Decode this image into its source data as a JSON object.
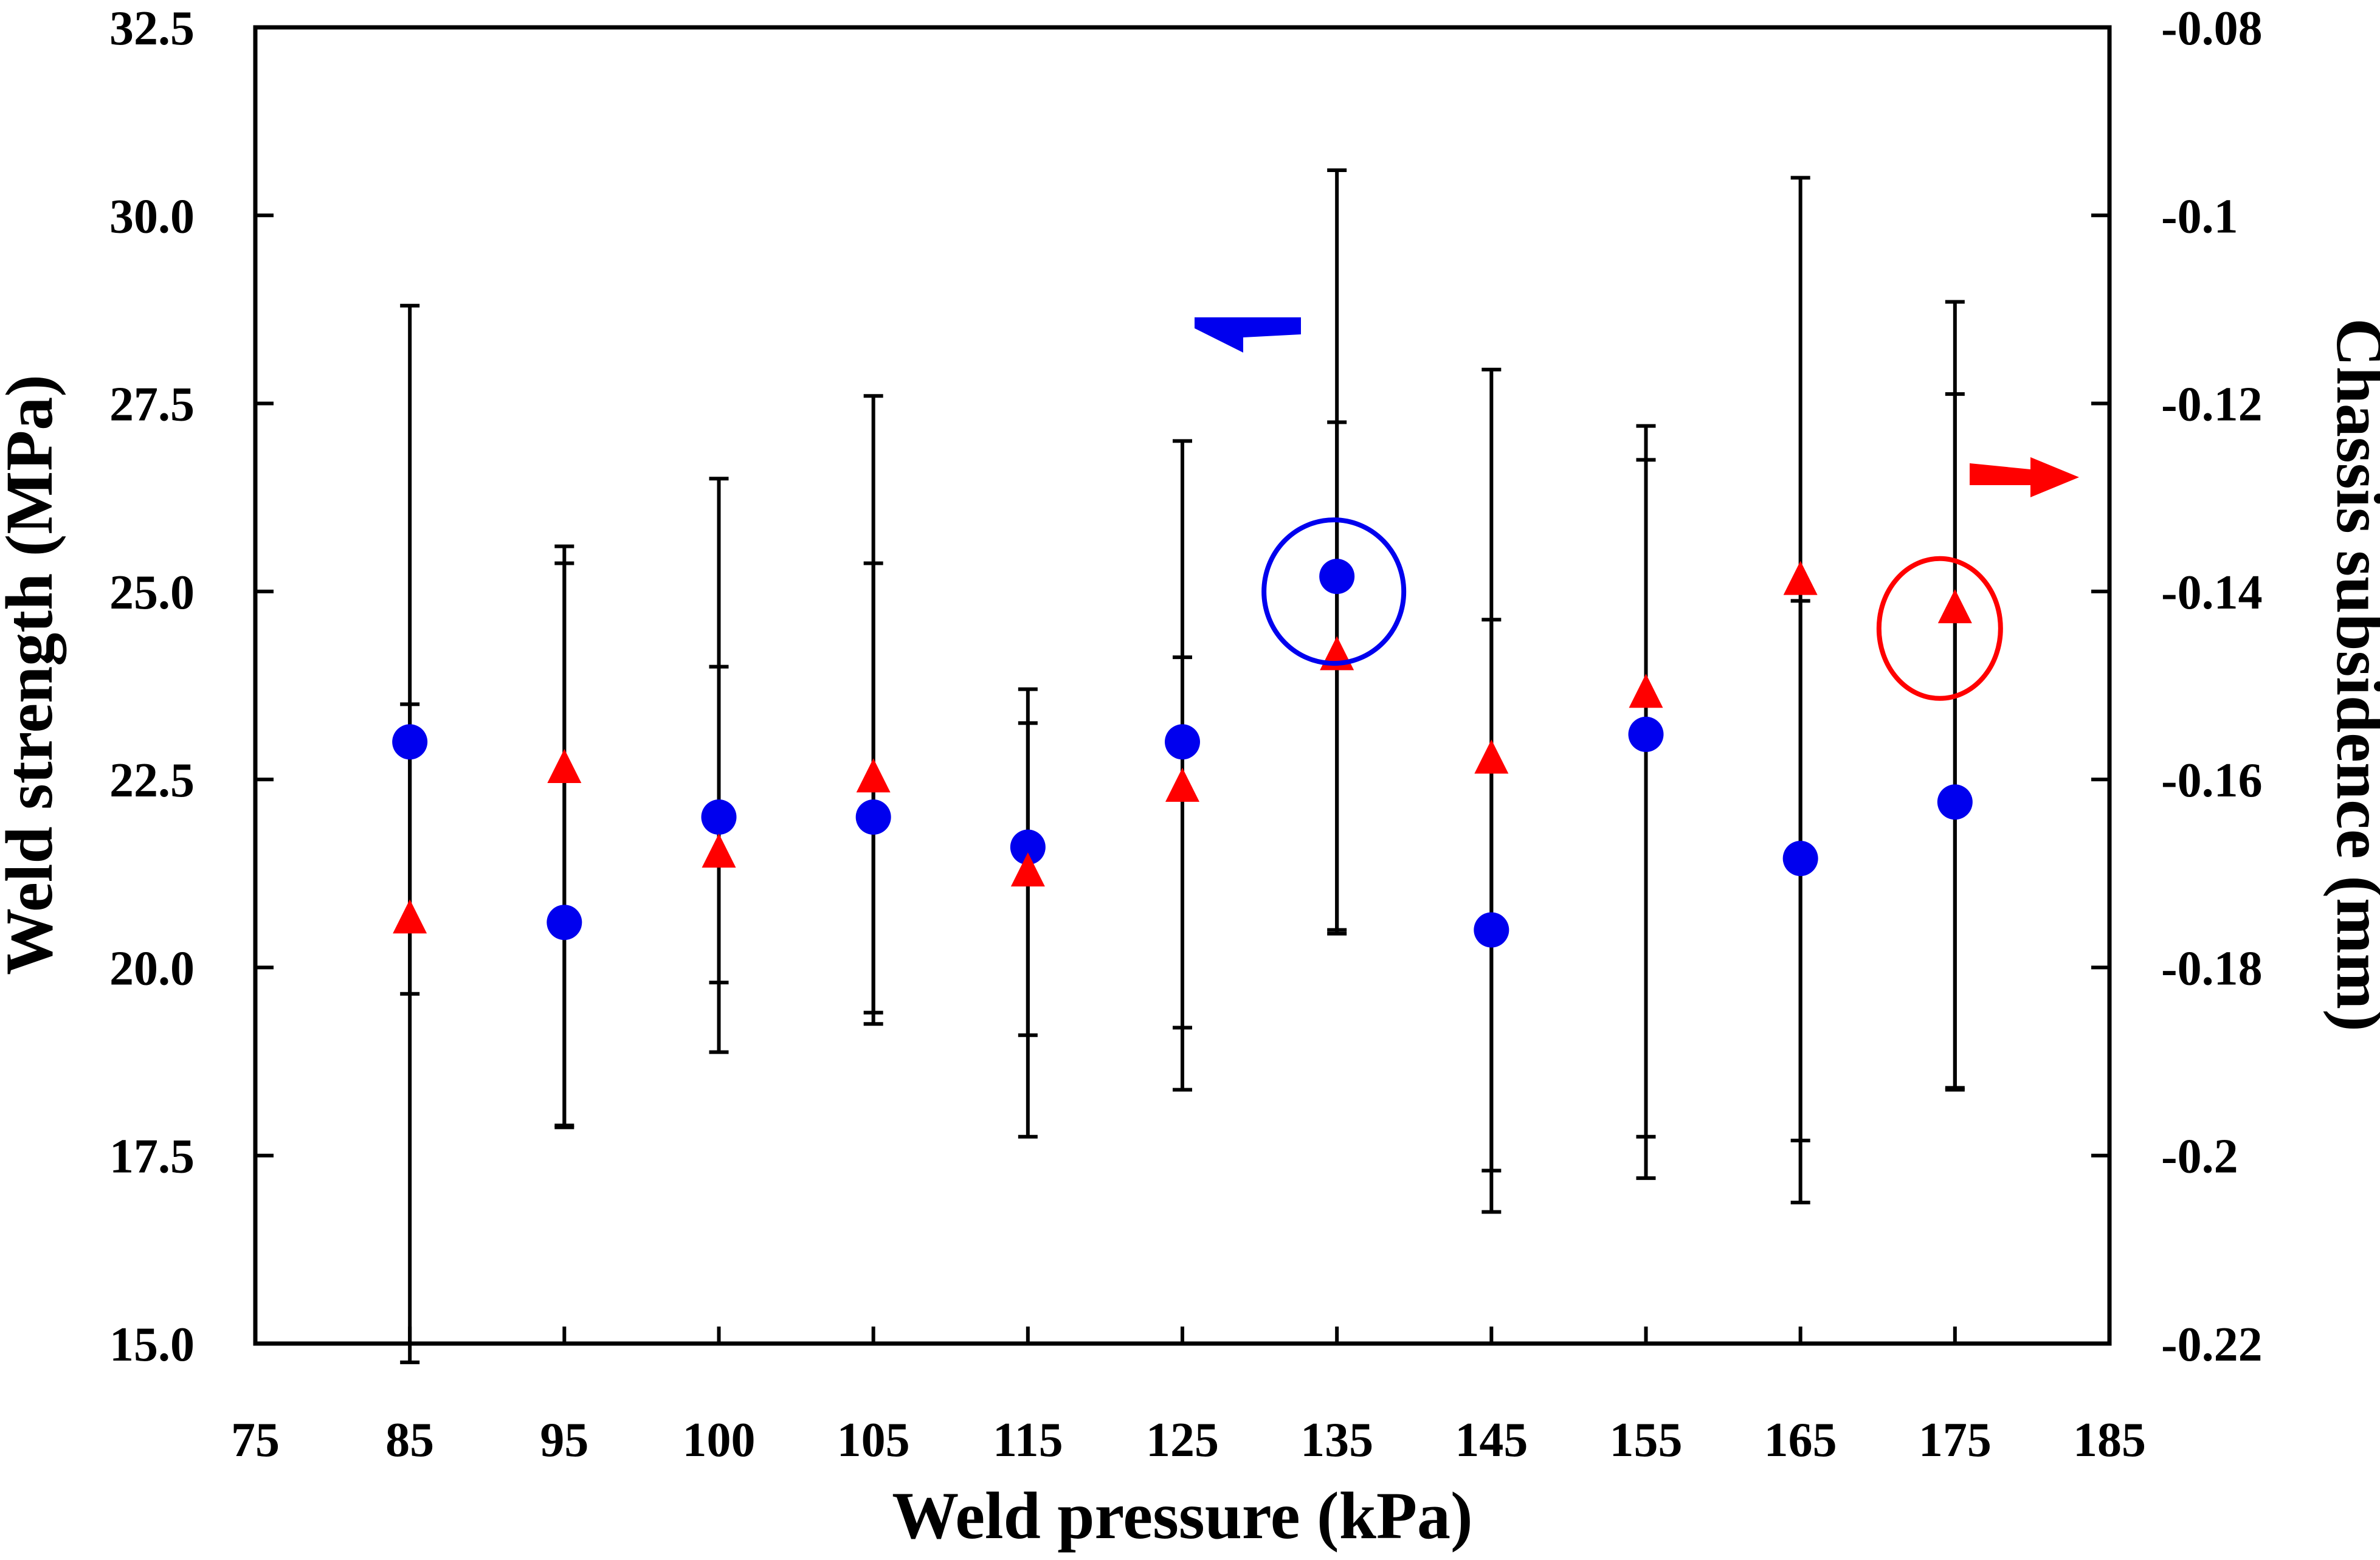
{
  "chart_data": {
    "type": "scatter",
    "title": "",
    "xlabel": "Weld pressure (kPa)",
    "ylabel_left": "Weld strength (MPa)",
    "ylabel_right": "Chassis subsidence (mm)",
    "x_tick_labels": [
      "75",
      "85",
      "95",
      "100",
      "105",
      "115",
      "125",
      "135",
      "145",
      "155",
      "165",
      "175",
      "185"
    ],
    "y_left_ticks": [
      "15.0",
      "17.5",
      "20.0",
      "22.5",
      "25.0",
      "27.5",
      "30.0",
      "32.5"
    ],
    "y_left_range": [
      15.0,
      32.5
    ],
    "y_right_ticks": [
      "-0.22",
      "-0.2",
      "-0.18",
      "-0.16",
      "-0.14",
      "-0.12",
      "-0.1",
      "-0.08"
    ],
    "y_right_range": [
      -0.22,
      -0.08
    ],
    "categories": [
      "85",
      "95",
      "100",
      "105",
      "115",
      "125",
      "135",
      "145",
      "155",
      "165",
      "175"
    ],
    "series": [
      {
        "name": "Weld strength",
        "axis": "left",
        "marker": "circle",
        "color": "#0000ee",
        "values": [
          23.0,
          20.6,
          22.0,
          22.0,
          21.6,
          23.0,
          25.2,
          20.5,
          23.1,
          21.45,
          22.2
        ],
        "err_low": [
          19.65,
          17.9,
          19.8,
          19.4,
          19.1,
          19.2,
          20.45,
          17.3,
          17.2,
          17.7,
          18.4
        ],
        "err_high": [
          28.8,
          25.6,
          26.5,
          27.6,
          23.7,
          27.0,
          30.6,
          27.95,
          27.2,
          30.5,
          28.85
        ]
      },
      {
        "name": "Chassis subsidence",
        "axis": "right",
        "marker": "triangle",
        "color": "#ff0000",
        "values": [
          -0.175,
          -0.159,
          -0.168,
          -0.16,
          -0.17,
          -0.161,
          -0.147,
          -0.158,
          -0.151,
          -0.139,
          -0.142
        ],
        "err_low": [
          -0.222,
          -0.197,
          -0.189,
          -0.186,
          -0.198,
          -0.193,
          -0.176,
          -0.206,
          -0.198,
          -0.205,
          -0.193
        ],
        "err_high": [
          -0.152,
          -0.137,
          -0.148,
          -0.137,
          -0.154,
          -0.147,
          -0.122,
          -0.143,
          -0.126,
          -0.141,
          -0.119
        ]
      }
    ],
    "annotations": [
      {
        "type": "ellipse",
        "color": "#0000ee",
        "target": "Weld strength at 135"
      },
      {
        "type": "ellipse",
        "color": "#ff0000",
        "target": "Chassis subsidence at 175"
      },
      {
        "type": "arrow",
        "direction": "left",
        "color": "#0000ee",
        "meaning": "left axis"
      },
      {
        "type": "arrow",
        "direction": "right",
        "color": "#ff0000",
        "meaning": "right axis"
      }
    ]
  }
}
